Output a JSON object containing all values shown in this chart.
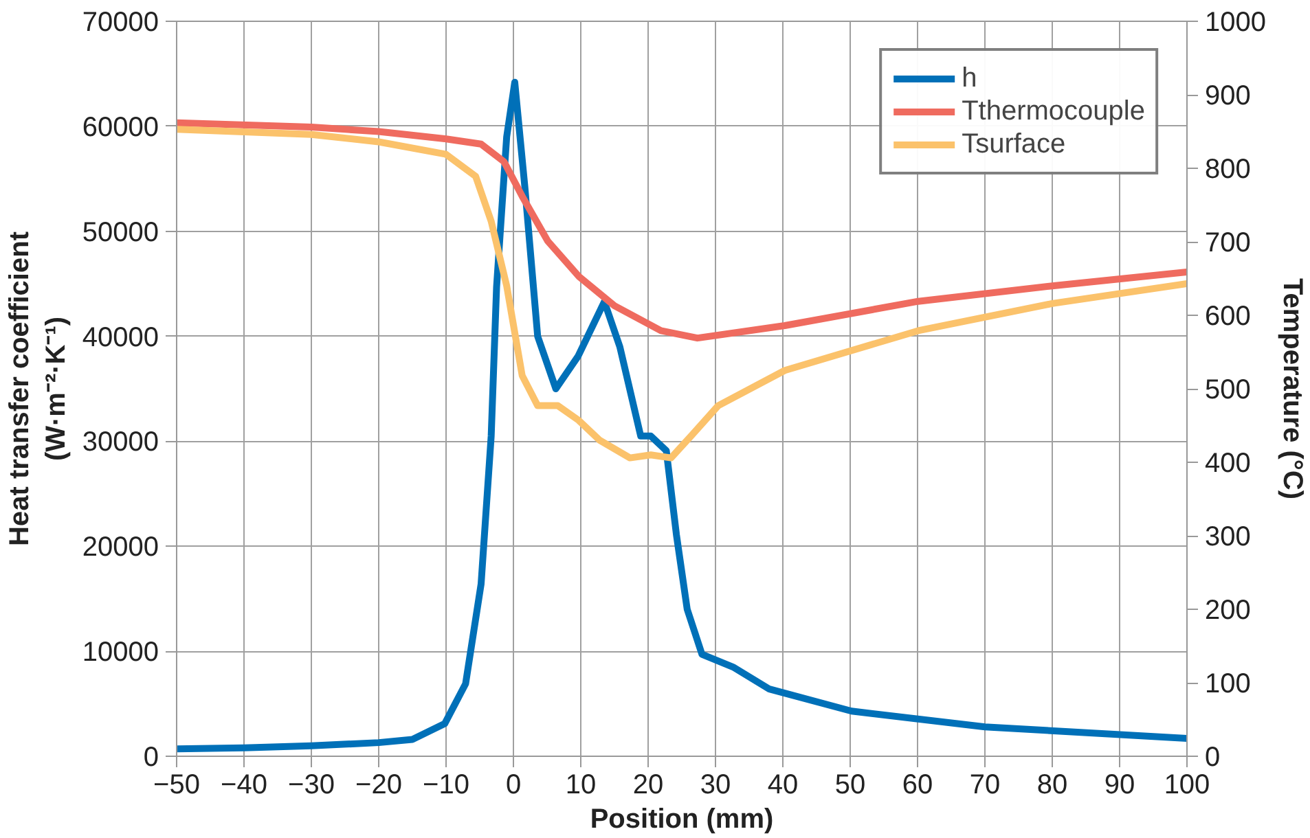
{
  "chart_data": {
    "type": "line",
    "xlabel": "Position (mm)",
    "ylabel": "Heat transfer coefficient\n(W·m⁻²·K⁻¹)",
    "y2label": "Temperature (°C)",
    "xlim": [
      -50,
      100
    ],
    "xticks": [
      -50,
      -40,
      -30,
      -20,
      -10,
      0,
      10,
      20,
      30,
      40,
      50,
      60,
      70,
      80,
      90,
      100
    ],
    "ylim": [
      0,
      70000
    ],
    "yticks": [
      0,
      10000,
      20000,
      30000,
      40000,
      50000,
      60000,
      70000
    ],
    "y2lim": [
      0,
      1000
    ],
    "y2ticks": [
      0,
      100,
      200,
      300,
      400,
      500,
      600,
      700,
      800,
      900,
      1000
    ],
    "grid": true,
    "legend": "top right",
    "marker": "none",
    "line_style": "solid",
    "series": [
      {
        "name": "h",
        "color": "#0070b8",
        "x": [
          -50,
          -40,
          -30,
          -20,
          -15,
          -10.2,
          -7.1,
          -4.8,
          -3.3,
          -2.5,
          -1,
          0.2,
          1.7,
          3.6,
          6.3,
          9.6,
          13.5,
          15.8,
          18.9,
          20.4,
          22.7,
          24.2,
          25.8,
          28,
          32.6,
          38,
          50.2,
          70,
          100
        ],
        "values": [
          700,
          800,
          1000,
          1300,
          1600,
          3100,
          6900,
          16400,
          30500,
          44700,
          59000,
          64200,
          54200,
          40000,
          35000,
          38100,
          43300,
          39000,
          30500,
          30500,
          29100,
          21100,
          14000,
          9700,
          8500,
          6400,
          4300,
          2800,
          1700
        ]
      },
      {
        "name": "Tthermocouple",
        "color": "#ef6b5f",
        "axis": "y2",
        "x": [
          -50,
          -30,
          -20,
          -10,
          -4.8,
          -1.4,
          1.3,
          5.1,
          9.7,
          15,
          21.9,
          27.3,
          40.3,
          60.1,
          80,
          100
        ],
        "values": [
          862,
          856,
          850,
          840,
          833,
          809,
          762,
          701,
          653,
          613,
          579,
          569,
          586,
          619,
          640,
          659
        ]
      },
      {
        "name": "Tsurface",
        "color": "#fbc26b",
        "axis": "y2",
        "x": [
          -50,
          -30,
          -20,
          -10,
          -5.6,
          -3.3,
          -1,
          1.3,
          3.6,
          6.6,
          9.7,
          12.8,
          17.3,
          20.4,
          23.4,
          26.5,
          30.4,
          40.3,
          60.1,
          80,
          100
        ],
        "values": [
          853,
          846,
          836,
          819,
          789,
          728,
          640,
          518,
          477,
          477,
          457,
          430,
          406,
          410,
          406,
          437,
          477,
          525,
          579,
          616,
          643
        ]
      }
    ]
  }
}
